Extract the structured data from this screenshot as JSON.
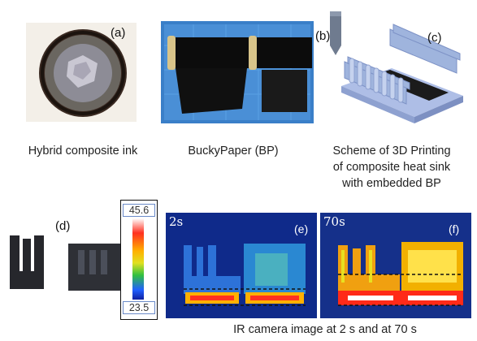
{
  "panels": {
    "a": {
      "label": "(a)",
      "caption": "Hybrid composite ink"
    },
    "b": {
      "label": "(b)",
      "caption": "BuckyPaper (BP)"
    },
    "c": {
      "label": "(c)",
      "caption_lines": [
        "Scheme of 3D Printing",
        "of composite heat sink",
        "with embedded  BP"
      ]
    },
    "d": {
      "label": "(d)"
    },
    "e": {
      "label": "(e)",
      "time": "2s"
    },
    "f": {
      "label": "(f)",
      "time": "70s"
    }
  },
  "colorbar": {
    "max": "45.6",
    "min": "23.5"
  },
  "bottom_caption": "IR camera image at 2 s  and at 70 s",
  "colors": {
    "petri_rim": "#2b1f1a",
    "bp_sheet": "#111111",
    "bp_background": "#3a7fc8",
    "print_model": "#9fb4dd",
    "printed_part": "#26272c",
    "ir_background": "#0f2a8a"
  }
}
